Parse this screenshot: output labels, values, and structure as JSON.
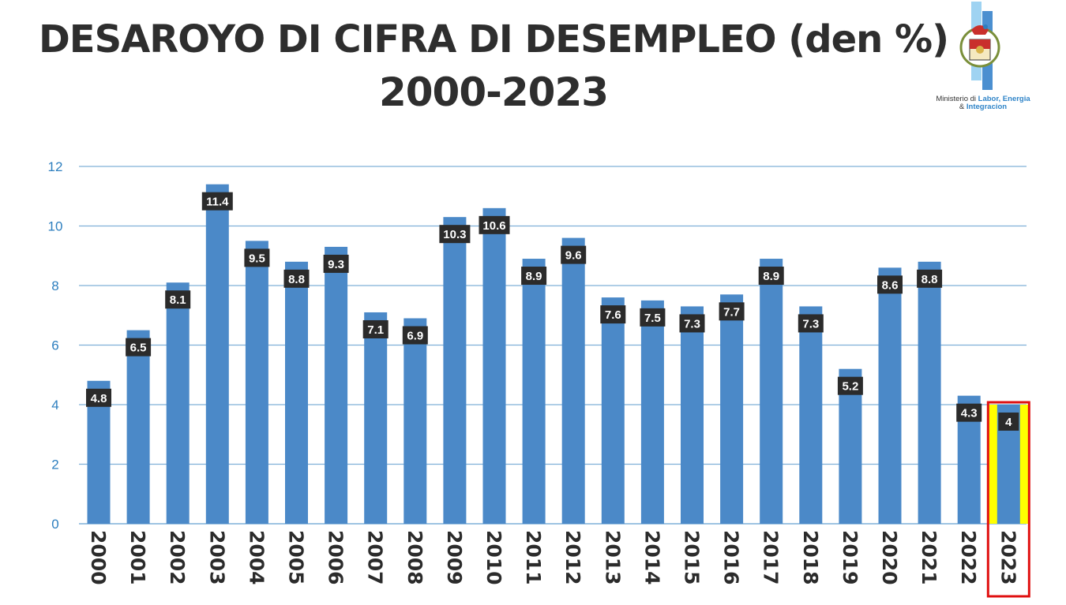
{
  "title_line1": "DESAROYO DI CIFRA DI DESEMPLEO (den %)",
  "title_line2": "2000-2023",
  "logo": {
    "line1": "Ministerio di ",
    "line1_blue": "Labor, Energia",
    "line2": "& ",
    "line2_blue": "Integracion"
  },
  "colors": {
    "bar": "#4b89c8",
    "grid": "#7fb0d8",
    "label_box": "#2b2b2b",
    "highlight_fill": "#ffff00",
    "highlight_border": "#e01010",
    "title": "#2e2e2e"
  },
  "chart_data": {
    "type": "bar",
    "title": "DESAROYO DI CIFRA DI DESEMPLEO (den %) 2000-2023",
    "xlabel": "",
    "ylabel": "",
    "ylim": [
      0,
      12
    ],
    "yticks": [
      0,
      2,
      4,
      6,
      8,
      10,
      12
    ],
    "grid": true,
    "categories": [
      "2000",
      "2001",
      "2002",
      "2003",
      "2004",
      "2005",
      "2006",
      "2007",
      "2008",
      "2009",
      "2010",
      "2011",
      "2012",
      "2013",
      "2014",
      "2015",
      "2016",
      "2017",
      "2018",
      "2019",
      "2020",
      "2021",
      "2022",
      "2023"
    ],
    "values": [
      4.8,
      6.5,
      8.1,
      11.4,
      9.5,
      8.8,
      9.3,
      7.1,
      6.9,
      10.3,
      10.6,
      8.9,
      9.6,
      7.6,
      7.5,
      7.3,
      7.7,
      8.9,
      7.3,
      5.2,
      8.6,
      8.8,
      4.3,
      4
    ],
    "highlighted_category": "2023"
  }
}
